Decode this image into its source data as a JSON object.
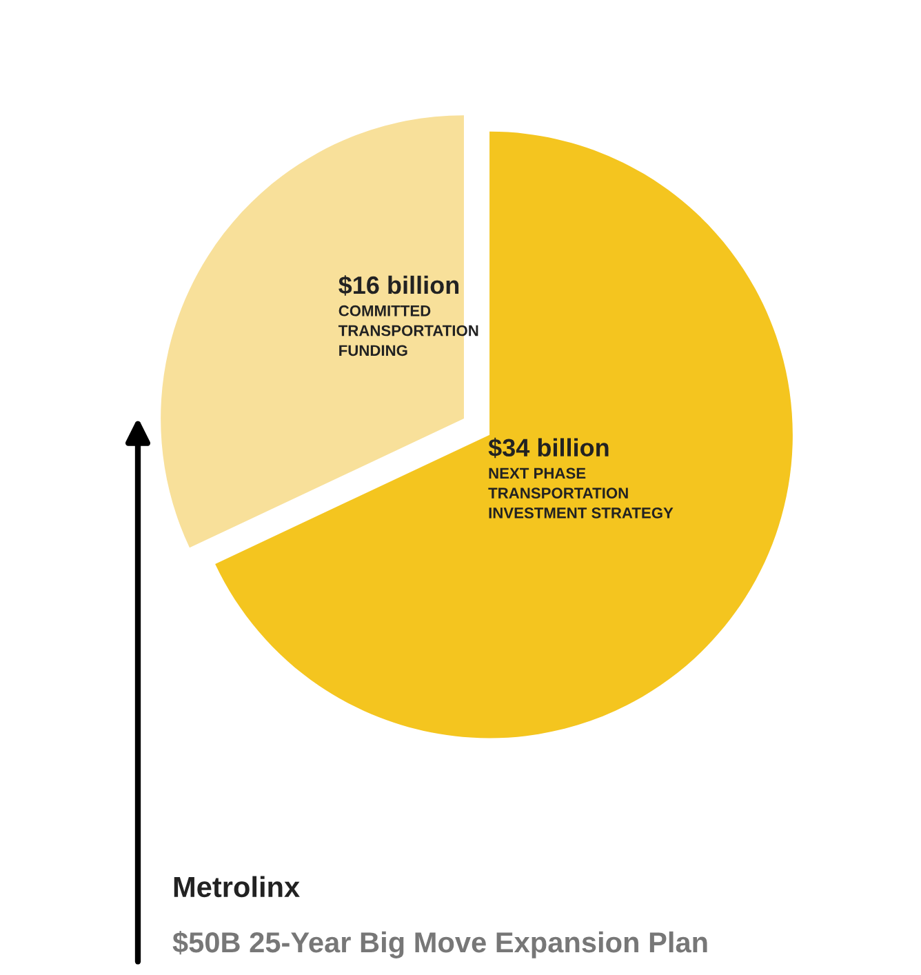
{
  "chart_data": {
    "type": "pie",
    "title": "Metrolinx",
    "subtitle": "$50B 25-Year Big Move Expansion Plan",
    "categories": [
      "COMMITTED\nTRANSPORTATION\nFUNDING",
      "NEXT PHASE\nTRANSPORTATION\nINVESTMENT STRATEGY"
    ],
    "values": [
      16,
      34
    ],
    "value_labels": [
      "$16 billion",
      "$34 billion"
    ],
    "colors": [
      "#f8e09a",
      "#f4c51f"
    ]
  }
}
